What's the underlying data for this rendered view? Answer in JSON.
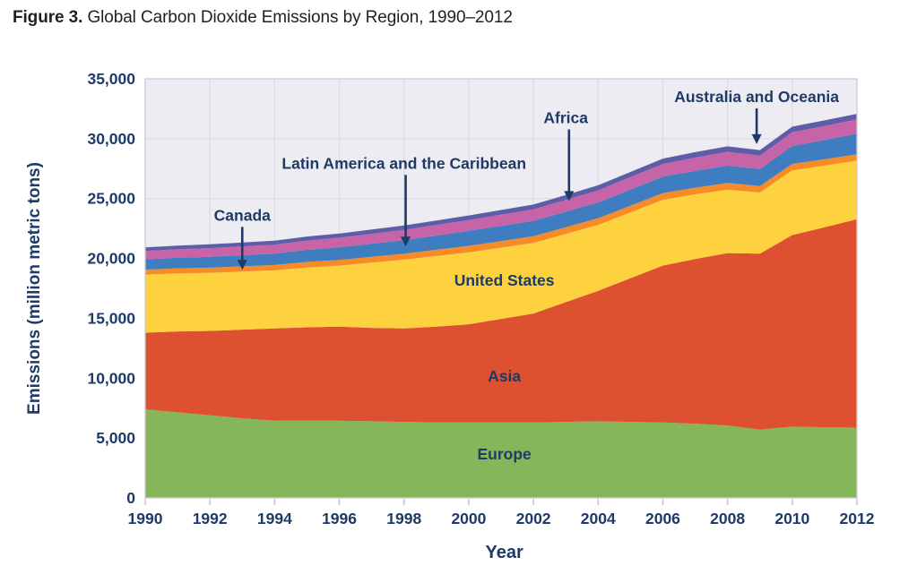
{
  "figure": {
    "label": "Figure 3.",
    "title": " Global Carbon Dioxide Emissions by Region, 1990–2012"
  },
  "colors": {
    "navy": "#1e3a68",
    "title_text": "#231f20",
    "plot_bg": "#edecf3",
    "grid": "#dcdbe4",
    "border": "#cfced8",
    "tick": "#c6c5cf"
  },
  "chart_data": {
    "type": "area",
    "stacked": true,
    "title": "Figure 3. Global Carbon Dioxide Emissions by Region, 1990–2012",
    "xlabel": "Year",
    "ylabel": "Emissions (million metric tons)",
    "ylim": [
      0,
      35000
    ],
    "ytick_step": 5000,
    "grid": true,
    "legend_position": "in-chart annotations",
    "x": [
      1990,
      1991,
      1992,
      1993,
      1994,
      1995,
      1996,
      1997,
      1998,
      1999,
      2000,
      2001,
      2002,
      2003,
      2004,
      2005,
      2006,
      2007,
      2008,
      2009,
      2010,
      2011,
      2012
    ],
    "xticks": [
      1990,
      1992,
      1994,
      1996,
      1998,
      2000,
      2002,
      2004,
      2006,
      2008,
      2010,
      2012
    ],
    "series": [
      {
        "name": "Europe",
        "color": "#85b75a",
        "values": [
          7400,
          7150,
          6900,
          6650,
          6450,
          6450,
          6450,
          6400,
          6350,
          6300,
          6300,
          6300,
          6300,
          6350,
          6400,
          6350,
          6300,
          6200,
          6050,
          5700,
          5950,
          5900,
          5870
        ]
      },
      {
        "name": "Asia",
        "color": "#dd5130",
        "values": [
          6400,
          6750,
          7050,
          7400,
          7700,
          7800,
          7850,
          7800,
          7800,
          8000,
          8200,
          8650,
          9100,
          10000,
          10900,
          12000,
          13100,
          13750,
          14400,
          14700,
          16000,
          16700,
          17400
        ]
      },
      {
        "name": "United States",
        "color": "#fdd23e",
        "values": [
          4850,
          4850,
          4850,
          4850,
          4850,
          5000,
          5100,
          5450,
          5750,
          5900,
          6000,
          5950,
          5900,
          5700,
          5500,
          5500,
          5500,
          5400,
          5300,
          5100,
          5400,
          5150,
          4900
        ]
      },
      {
        "name": "Canada",
        "color": "#f68b28",
        "values": [
          420,
          425,
          430,
          440,
          450,
          465,
          480,
          490,
          500,
          525,
          550,
          550,
          550,
          555,
          560,
          560,
          560,
          555,
          550,
          540,
          545,
          540,
          535
        ]
      },
      {
        "name": "Latin America and the Caribbean",
        "color": "#3e7ec0",
        "values": [
          850,
          875,
          900,
          925,
          950,
          1000,
          1050,
          1090,
          1130,
          1190,
          1250,
          1270,
          1290,
          1300,
          1320,
          1350,
          1380,
          1415,
          1450,
          1425,
          1500,
          1600,
          1700
        ]
      },
      {
        "name": "Africa",
        "color": "#c763a7",
        "values": [
          700,
          715,
          730,
          740,
          750,
          775,
          800,
          825,
          850,
          875,
          900,
          925,
          950,
          975,
          1000,
          1025,
          1050,
          1100,
          1150,
          1125,
          1150,
          1175,
          1200
        ]
      },
      {
        "name": "Australia and Oceania",
        "color": "#5e5ea8",
        "values": [
          300,
          310,
          320,
          325,
          330,
          340,
          350,
          360,
          370,
          380,
          390,
          400,
          410,
          420,
          430,
          440,
          450,
          455,
          460,
          455,
          460,
          465,
          470
        ]
      }
    ],
    "area_labels": [
      {
        "text": "United States",
        "x": 2001.1,
        "y": 18170
      },
      {
        "text": "Asia",
        "x": 2001.1,
        "y": 10170
      },
      {
        "text": "Europe",
        "x": 2001.1,
        "y": 3660
      }
    ],
    "annotations": [
      {
        "text": "Canada",
        "label_x": 1993.0,
        "label_y": 23600,
        "tip_x": 1993.0,
        "tip_y": 19050
      },
      {
        "text": "Latin America and the Caribbean",
        "label_x": 1998.0,
        "label_y": 27950,
        "tip_x": 1998.05,
        "tip_y": 21000
      },
      {
        "text": "Africa",
        "label_x": 2003.0,
        "label_y": 31750,
        "tip_x": 2003.1,
        "tip_y": 24800
      },
      {
        "text": "Australia and Oceania",
        "label_x": 2008.9,
        "label_y": 33500,
        "tip_x": 2008.9,
        "tip_y": 29550
      }
    ]
  }
}
